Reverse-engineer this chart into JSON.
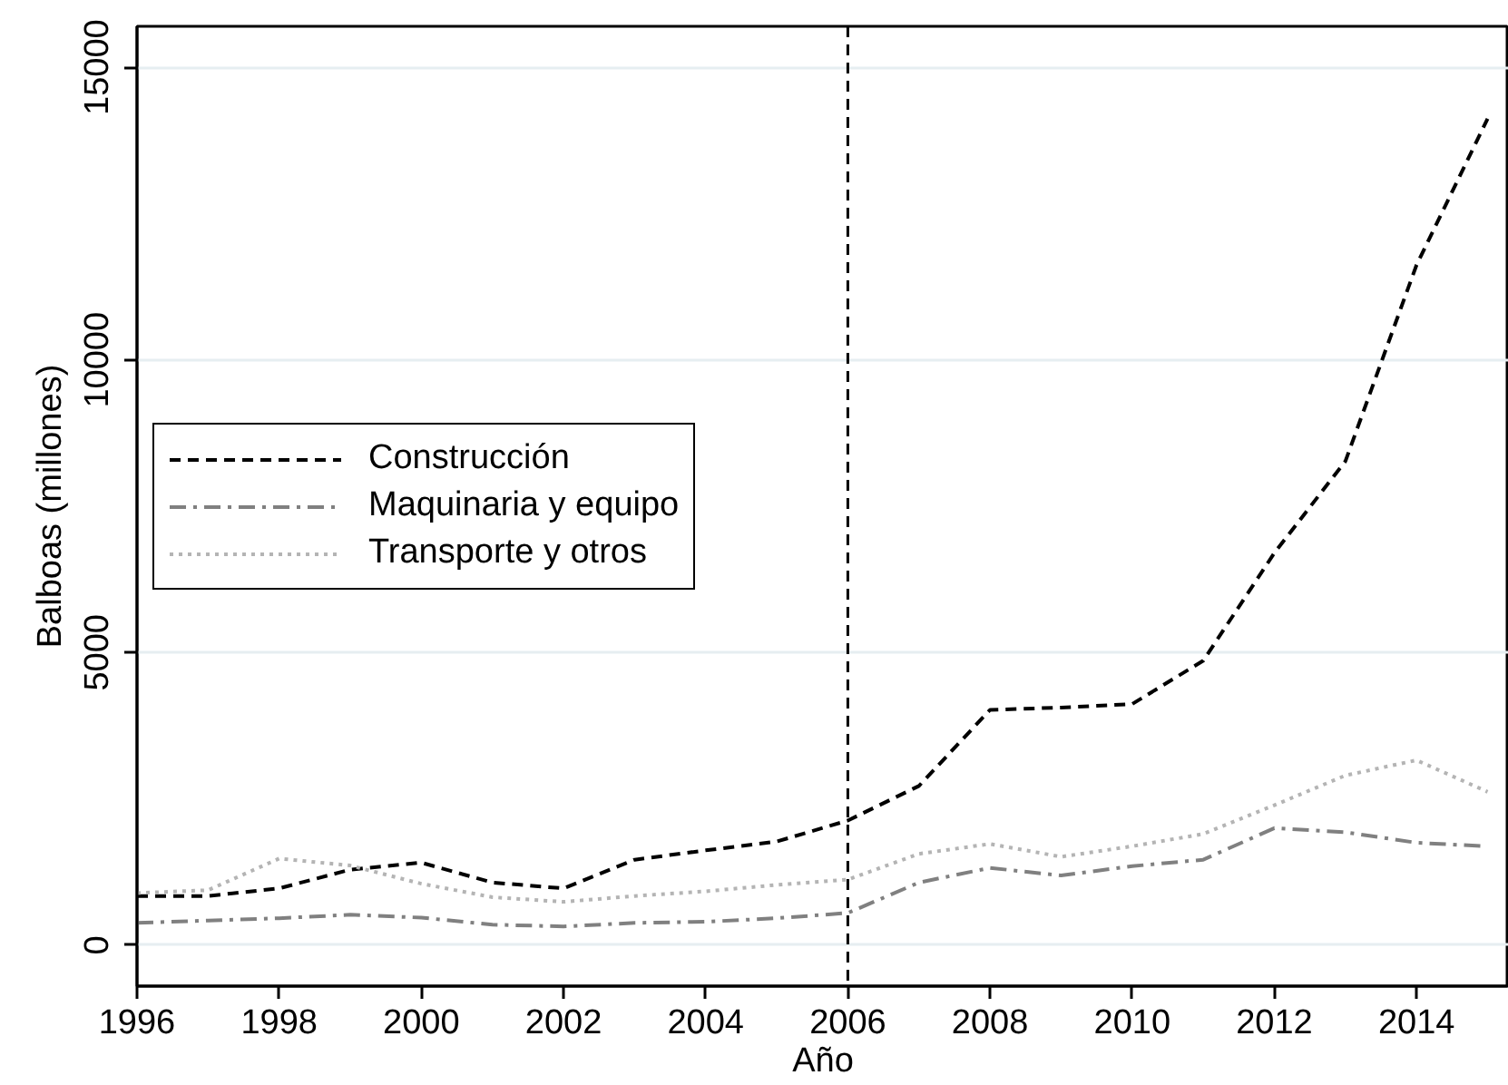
{
  "chart_data": {
    "type": "line",
    "xlabel": "Año",
    "ylabel": "Balboas (millones)",
    "x": [
      1996,
      1997,
      1998,
      1999,
      2000,
      2001,
      2002,
      2003,
      2004,
      2005,
      2006,
      2007,
      2008,
      2009,
      2010,
      2011,
      2012,
      2013,
      2014,
      2015
    ],
    "series": [
      {
        "name": "Construcción",
        "color": "#000000",
        "line_style": "dashed",
        "values": [
          840,
          840,
          970,
          1290,
          1410,
          1070,
          970,
          1460,
          1620,
          1770,
          2130,
          2720,
          4020,
          4060,
          4120,
          4860,
          6700,
          8270,
          11620,
          14120
        ]
      },
      {
        "name": "Maquinaria y equipo",
        "color": "#808080",
        "line_style": "dashdot",
        "values": [
          380,
          420,
          460,
          520,
          470,
          350,
          320,
          380,
          400,
          460,
          550,
          1070,
          1320,
          1190,
          1350,
          1460,
          2000,
          1930,
          1750,
          1690
        ]
      },
      {
        "name": "Transporte y otros",
        "color": "#b4b4b4",
        "line_style": "dotted",
        "values": [
          890,
          940,
          1480,
          1360,
          1050,
          820,
          740,
          840,
          920,
          1030,
          1120,
          1560,
          1730,
          1510,
          1690,
          1900,
          2390,
          2900,
          3160,
          2620
        ]
      }
    ],
    "xlim": [
      1996,
      2015.3
    ],
    "ylim": [
      -700,
      15700
    ],
    "xticks": [
      1996,
      1998,
      2000,
      2002,
      2004,
      2006,
      2008,
      2010,
      2012,
      2014
    ],
    "yticks": [
      0,
      5000,
      10000,
      15000
    ],
    "grid": "y",
    "legend": "left",
    "ref_lines": [
      {
        "axis": "x",
        "value": 2006,
        "color": "#000000",
        "line_style": "dashed"
      }
    ]
  }
}
